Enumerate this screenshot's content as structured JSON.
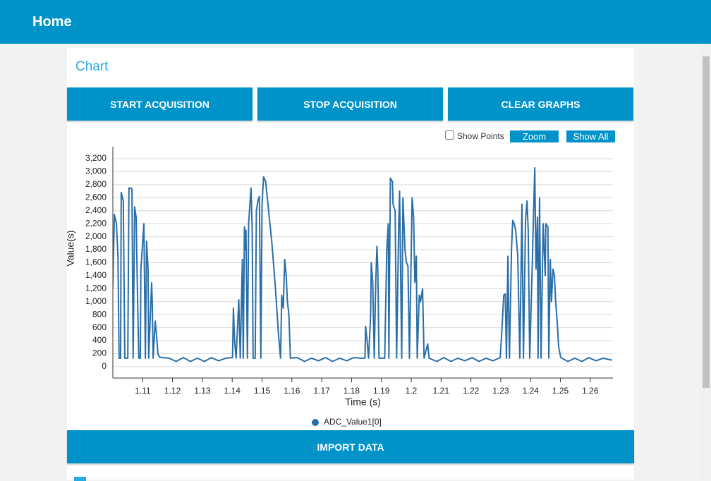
{
  "header": {
    "title": "Home"
  },
  "section": {
    "title": "Chart"
  },
  "buttons": [
    "START ACQUISITION",
    "STOP ACQUISITION",
    "CLEAR GRAPHS"
  ],
  "controls": {
    "show_points": "Show Points",
    "zoom": "Zoom",
    "show_all": "Show All"
  },
  "import_button": "IMPORT DATA",
  "chart_data": {
    "type": "line",
    "x_label": "Time (s)",
    "y_label": "Value(s)",
    "xlim": [
      1.1,
      1.2676
    ],
    "ylim": [
      -175,
      3385
    ],
    "xticks": [
      1.11,
      1.12,
      1.13,
      1.14,
      1.15,
      1.16,
      1.17,
      1.18,
      1.19,
      1.2,
      1.21,
      1.22,
      1.23,
      1.24,
      1.25,
      1.26
    ],
    "yticks": [
      0,
      200,
      400,
      600,
      800,
      {
        "value": 1000,
        "label": "1,000"
      },
      {
        "value": 1200,
        "label": "1,200"
      },
      {
        "value": 1400,
        "label": "1,400"
      },
      {
        "value": 1600,
        "label": "1,600"
      },
      {
        "value": 1800,
        "label": "1,800"
      },
      {
        "value": 2000,
        "label": "2,000"
      },
      {
        "value": 2200,
        "label": "2,200"
      },
      {
        "value": 2400,
        "label": "2,400"
      },
      {
        "value": 2600,
        "label": "2,600"
      },
      {
        "value": 2800,
        "label": "2,800"
      },
      {
        "value": 3000,
        "label": "3,000"
      },
      {
        "value": 3200,
        "label": "3,200"
      }
    ],
    "grid": true,
    "legend": "bottom",
    "x": [
      1.1,
      1.1005,
      1.1012,
      1.1017,
      1.1021,
      1.1026,
      1.1028,
      1.1035,
      1.104,
      1.105,
      1.1054,
      1.1064,
      1.1068,
      1.1073,
      1.1078,
      1.1083,
      1.1087,
      1.1092,
      1.1094,
      1.1104,
      1.1109,
      1.1113,
      1.1118,
      1.112,
      1.113,
      1.1132,
      1.1135,
      1.1142,
      1.1146,
      1.1151,
      1.1156,
      1.1165,
      1.1189,
      1.1212,
      1.1236,
      1.126,
      1.1283,
      1.1307,
      1.133,
      1.1354,
      1.1378,
      1.1401,
      1.1404,
      1.1408,
      1.1413,
      1.1422,
      1.1427,
      1.1434,
      1.1437,
      1.1441,
      1.1444,
      1.1446,
      1.1451,
      1.1455,
      1.1463,
      1.1467,
      1.147,
      1.1477,
      1.1481,
      1.1486,
      1.1491,
      1.1496,
      1.15,
      1.1505,
      1.1512,
      1.1522,
      1.1533,
      1.1545,
      1.1555,
      1.1562,
      1.1566,
      1.1571,
      1.1576,
      1.1581,
      1.1585,
      1.159,
      1.1595,
      1.1618,
      1.1642,
      1.1666,
      1.1689,
      1.1713,
      1.1736,
      1.176,
      1.1784,
      1.1807,
      1.1831,
      1.1845,
      1.1847,
      1.1852,
      1.1857,
      1.1864,
      1.1866,
      1.1871,
      1.1876,
      1.1881,
      1.1885,
      1.1888,
      1.1892,
      1.1911,
      1.1918,
      1.1923,
      1.1925,
      1.193,
      1.1937,
      1.1939,
      1.1946,
      1.1951,
      1.1958,
      1.1961,
      1.1968,
      1.1972,
      1.1979,
      1.1984,
      1.1989,
      1.1994,
      1.2003,
      1.2008,
      1.2012,
      1.2017,
      1.202,
      1.2027,
      1.2031,
      1.2038,
      1.2043,
      1.2055,
      1.206,
      1.2086,
      1.2109,
      1.2133,
      1.2156,
      1.218,
      1.2204,
      1.2227,
      1.2251,
      1.2274,
      1.2298,
      1.2303,
      1.231,
      1.2315,
      1.2319,
      1.2324,
      1.2329,
      1.2336,
      1.234,
      1.2345,
      1.235,
      1.2357,
      1.2364,
      1.2371,
      1.2376,
      1.2383,
      1.2388,
      1.2392,
      1.2397,
      1.2404,
      1.2409,
      1.2414,
      1.2418,
      1.2423,
      1.2425,
      1.243,
      1.2435,
      1.2442,
      1.2449,
      1.2451,
      1.2458,
      1.2461,
      1.2466,
      1.247,
      1.2475,
      1.248,
      1.2484,
      1.2489,
      1.2494,
      1.2501,
      1.2525,
      1.2548,
      1.2572,
      1.2595,
      1.2619,
      1.2643,
      1.2673
    ],
    "series": [
      {
        "name": "ADC_Value1[0]",
        "color": "#2a6ea8",
        "values": [
          1200,
          2340,
          2200,
          1700,
          130,
          130,
          2680,
          2550,
          130,
          130,
          2750,
          2740,
          130,
          2460,
          2300,
          1000,
          130,
          130,
          1500,
          2200,
          130,
          1930,
          1500,
          130,
          1290,
          1000,
          130,
          700,
          500,
          200,
          150,
          140,
          130,
          80,
          140,
          80,
          130,
          80,
          140,
          90,
          130,
          140,
          900,
          400,
          130,
          1030,
          130,
          1650,
          130,
          2150,
          1800,
          2100,
          130,
          2200,
          2750,
          2100,
          130,
          130,
          2400,
          2550,
          2620,
          130,
          2500,
          2920,
          2850,
          2400,
          1900,
          1200,
          500,
          130,
          1100,
          900,
          1650,
          1400,
          1000,
          800,
          130,
          140,
          80,
          130,
          90,
          140,
          80,
          130,
          90,
          140,
          130,
          130,
          620,
          400,
          130,
          800,
          1600,
          1300,
          130,
          1300,
          1850,
          1500,
          130,
          130,
          1800,
          2200,
          130,
          2900,
          2850,
          2500,
          2400,
          130,
          2200,
          2700,
          130,
          2600,
          1800,
          1600,
          1550,
          130,
          2600,
          2300,
          1300,
          1700,
          130,
          1100,
          1000,
          1200,
          130,
          350,
          130,
          80,
          140,
          80,
          130,
          90,
          140,
          80,
          130,
          90,
          140,
          500,
          1100,
          1120,
          130,
          1700,
          130,
          1800,
          2250,
          2200,
          2100,
          1700,
          130,
          2500,
          130,
          2250,
          2550,
          2100,
          130,
          1300,
          2200,
          3060,
          1500,
          2300,
          130,
          2600,
          130,
          2200,
          1400,
          2200,
          2150,
          130,
          1650,
          1000,
          1500,
          1400,
          1000,
          700,
          300,
          140,
          80,
          130,
          80,
          140,
          90,
          130,
          100
        ]
      }
    ]
  }
}
